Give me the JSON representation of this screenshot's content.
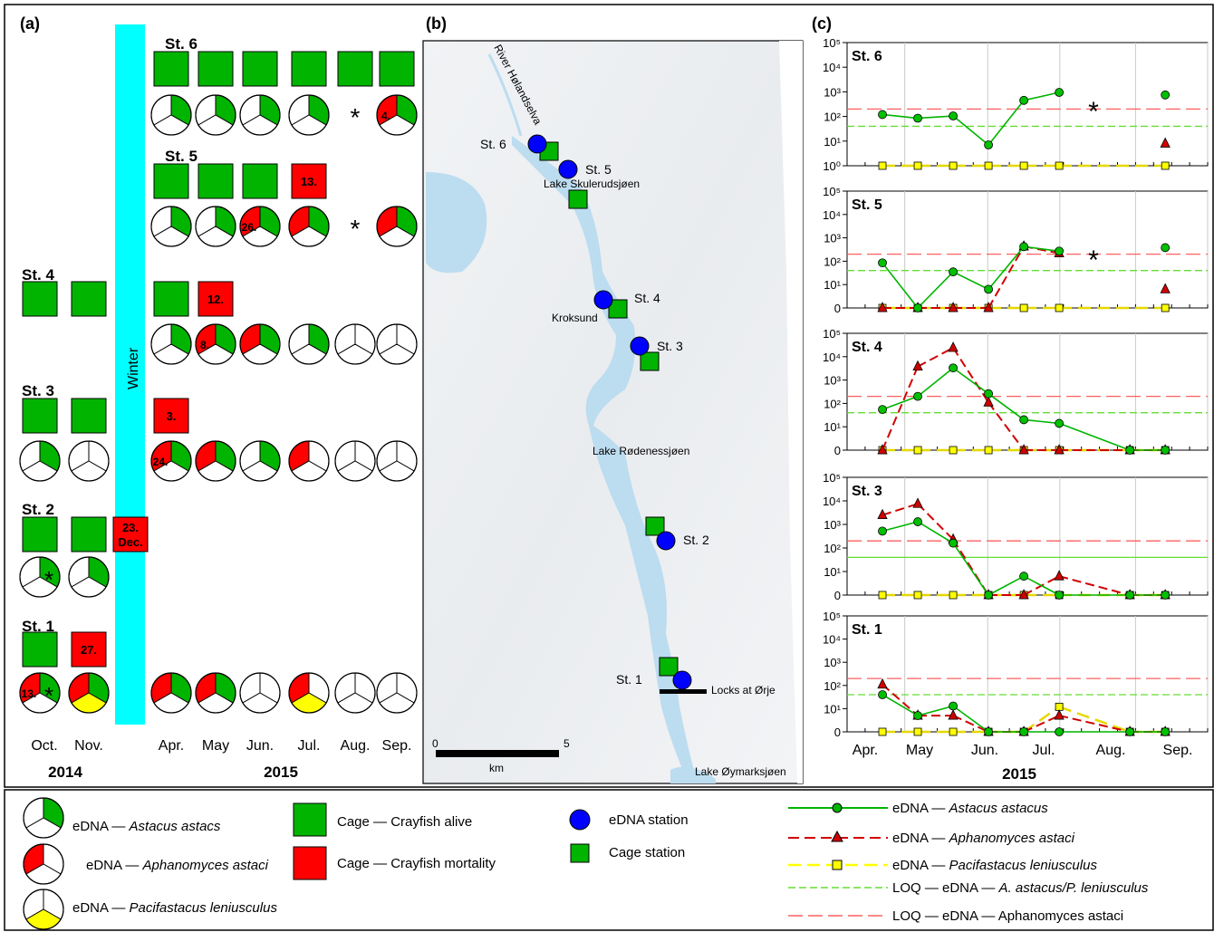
{
  "panel_a": {
    "label": "(a)",
    "winter_label": "Winter",
    "stations": [
      {
        "name": "St. 6",
        "cage": [
          null,
          null,
          "alive",
          "alive",
          "alive",
          "alive",
          "alive",
          "alive"
        ],
        "cage_text": [
          null,
          null,
          "",
          "",
          "",
          "",
          "",
          ""
        ],
        "pie": [
          null,
          null,
          [
            1,
            0,
            0
          ],
          [
            1,
            0,
            0
          ],
          [
            1,
            0,
            0
          ],
          [
            1,
            0,
            0
          ],
          "*",
          [
            1,
            1,
            0
          ]
        ],
        "pie_text": [
          null,
          null,
          "",
          "",
          "",
          "",
          "",
          "4."
        ],
        "pie_star": [
          null,
          null,
          false,
          false,
          false,
          false,
          true,
          false
        ]
      },
      {
        "name": "St. 5",
        "cage": [
          null,
          null,
          "alive",
          "alive",
          "alive",
          "dead",
          null,
          null
        ],
        "cage_text": [
          null,
          null,
          "",
          "",
          "",
          "13.",
          null,
          null
        ],
        "pie": [
          null,
          null,
          [
            1,
            0,
            0
          ],
          [
            1,
            0,
            0
          ],
          [
            1,
            1,
            0
          ],
          [
            1,
            1,
            0
          ],
          "*",
          [
            1,
            1,
            0
          ]
        ],
        "pie_text": [
          null,
          null,
          "",
          "",
          "26.",
          "",
          "",
          ""
        ]
      },
      {
        "name": "St. 4",
        "cage": [
          "alive",
          "alive",
          "alive",
          "dead",
          null,
          null,
          null,
          null
        ],
        "cage_text": [
          "",
          "",
          "",
          "12.",
          null,
          null,
          null,
          null
        ],
        "pie": [
          null,
          null,
          [
            1,
            0,
            0
          ],
          [
            1,
            1,
            0
          ],
          [
            1,
            1,
            0
          ],
          [
            1,
            0,
            0
          ],
          [
            0,
            0,
            0
          ],
          [
            0,
            0,
            0
          ]
        ],
        "pie_text": [
          null,
          null,
          "",
          "8.",
          "",
          "",
          "",
          ""
        ]
      },
      {
        "name": "St. 3",
        "cage": [
          "alive",
          "alive",
          "dead",
          null,
          null,
          null,
          null,
          null
        ],
        "cage_text": [
          "",
          "",
          "3.",
          null,
          null,
          null,
          null,
          null
        ],
        "pie": [
          [
            1,
            0,
            0
          ],
          [
            0,
            0,
            0
          ],
          [
            1,
            1,
            0
          ],
          [
            1,
            1,
            0
          ],
          [
            1,
            0,
            0
          ],
          [
            0,
            1,
            0
          ],
          [
            0,
            0,
            0
          ],
          [
            0,
            0,
            0
          ]
        ],
        "pie_text": [
          "",
          "",
          "24.",
          "",
          "",
          "",
          "",
          ""
        ]
      },
      {
        "name": "St. 2",
        "cage": [
          "alive",
          "alive",
          null,
          null,
          null,
          null,
          null,
          null
        ],
        "cage_text": [
          "",
          "",
          null,
          null,
          null,
          null,
          null,
          null
        ],
        "winter_cage_text": [
          "23.",
          "Dec."
        ],
        "pie": [
          [
            1,
            0,
            0
          ],
          [
            1,
            0,
            0
          ],
          null,
          null,
          null,
          null,
          null,
          null
        ],
        "pie_text": [
          "",
          "",
          null,
          null,
          null,
          null,
          null,
          null
        ]
      },
      {
        "name": "St. 1",
        "cage": [
          "alive",
          "dead",
          null,
          null,
          null,
          null,
          null,
          null
        ],
        "cage_text": [
          "",
          "27.",
          null,
          null,
          null,
          null,
          null,
          null
        ],
        "pie": [
          [
            1,
            1,
            0
          ],
          [
            1,
            1,
            1
          ],
          [
            1,
            1,
            0
          ],
          [
            1,
            1,
            0
          ],
          [
            0,
            0,
            0
          ],
          [
            0,
            1,
            1
          ],
          [
            0,
            0,
            0
          ],
          [
            0,
            0,
            0
          ]
        ],
        "pie_text": [
          "13.",
          "",
          "",
          "",
          "",
          "",
          "",
          ""
        ]
      }
    ],
    "months": [
      "Oct.",
      "Nov.",
      "Apr.",
      "May",
      "Jun.",
      "Jul.",
      "Aug.",
      "Sep."
    ],
    "years": [
      "2014",
      "2015"
    ]
  },
  "panel_b": {
    "label": "(b)",
    "river": "River Hølandselva",
    "lakes": [
      "Lake Skulerudsjøen",
      "Lake Rødenessjøen",
      "Lake Øymarksjøen"
    ],
    "places": [
      "Kroksund",
      "Locks at Ørje"
    ],
    "stations": [
      "St. 6",
      "St. 5",
      "St. 4",
      "St. 3",
      "St. 2",
      "St. 1"
    ],
    "scale": {
      "start": "0",
      "end": "5",
      "unit": "km"
    }
  },
  "chart_data": {
    "type": "line",
    "label": "(c)",
    "xlabel": "2015",
    "x_months": [
      "Apr.",
      "May",
      "Jun.",
      "Jul.",
      "Aug.",
      "Sep."
    ],
    "y_ticks": [
      "0",
      "10¹",
      "10²",
      "10³",
      "10⁴",
      "10⁵"
    ],
    "y_ticks_st6": [
      "10⁰",
      "10¹",
      "10²",
      "10³",
      "10⁴",
      "10⁵"
    ],
    "loq_astacus": 40,
    "loq_aphanomyces": 200,
    "panels": [
      {
        "name": "St. 6",
        "star": true,
        "astacus": [
          [
            1,
            120
          ],
          [
            2,
            85
          ],
          [
            3,
            105
          ],
          [
            4,
            7
          ],
          [
            5,
            450
          ],
          [
            6,
            950
          ],
          [
            9,
            750
          ]
        ],
        "aphanomyces": [
          [
            9,
            8
          ]
        ],
        "pacifastacus": [
          [
            1,
            1
          ],
          [
            2,
            1
          ],
          [
            3,
            1
          ],
          [
            4,
            1
          ],
          [
            5,
            1
          ],
          [
            6,
            1
          ],
          [
            9,
            1
          ]
        ]
      },
      {
        "name": "St. 5",
        "star": true,
        "astacus": [
          [
            1,
            85
          ],
          [
            2,
            0
          ],
          [
            3,
            35
          ],
          [
            4,
            8
          ],
          [
            5,
            420
          ],
          [
            6,
            270
          ],
          [
            9,
            380
          ]
        ],
        "aphanomyces": [
          [
            1,
            0
          ],
          [
            2,
            0
          ],
          [
            3,
            0
          ],
          [
            4,
            0
          ],
          [
            5,
            430
          ],
          [
            6,
            220
          ],
          [
            9,
            8
          ]
        ],
        "pacifastacus": [
          [
            1,
            0
          ],
          [
            2,
            0
          ],
          [
            3,
            0
          ],
          [
            4,
            0
          ],
          [
            5,
            0
          ],
          [
            6,
            0
          ],
          [
            9,
            0
          ]
        ]
      },
      {
        "name": "St. 4",
        "star": false,
        "astacus": [
          [
            1,
            55
          ],
          [
            2,
            200
          ],
          [
            3,
            3300
          ],
          [
            4,
            260
          ],
          [
            5,
            20
          ],
          [
            6,
            14
          ],
          [
            8,
            0
          ],
          [
            9,
            0
          ]
        ],
        "aphanomyces": [
          [
            1,
            0
          ],
          [
            2,
            3800
          ],
          [
            3,
            24000
          ],
          [
            4,
            110
          ],
          [
            5,
            0
          ],
          [
            6,
            0
          ],
          [
            8,
            0
          ],
          [
            9,
            0
          ]
        ],
        "pacifastacus": [
          [
            1,
            0
          ],
          [
            2,
            0
          ],
          [
            3,
            0
          ],
          [
            4,
            0
          ],
          [
            5,
            0
          ],
          [
            6,
            0
          ],
          [
            8,
            0
          ],
          [
            9,
            0
          ]
        ]
      },
      {
        "name": "St. 3",
        "star": false,
        "astacus": [
          [
            1,
            520
          ],
          [
            2,
            1300
          ],
          [
            3,
            160
          ],
          [
            4,
            0
          ],
          [
            5,
            8
          ],
          [
            6,
            0
          ],
          [
            8,
            0
          ],
          [
            9,
            0
          ]
        ],
        "aphanomyces": [
          [
            1,
            2500
          ],
          [
            2,
            7500
          ],
          [
            3,
            230
          ],
          [
            4,
            0
          ],
          [
            5,
            0
          ],
          [
            6,
            8
          ],
          [
            8,
            0
          ],
          [
            9,
            0
          ]
        ],
        "pacifastacus": [
          [
            1,
            0
          ],
          [
            2,
            0
          ],
          [
            3,
            0
          ],
          [
            4,
            0
          ],
          [
            5,
            0
          ],
          [
            6,
            0
          ],
          [
            8,
            0
          ],
          [
            9,
            0
          ]
        ]
      },
      {
        "name": "St. 1",
        "star": false,
        "astacus": [
          [
            1,
            40
          ],
          [
            2,
            7
          ],
          [
            3,
            13
          ],
          [
            4,
            0
          ],
          [
            5,
            0
          ],
          [
            6,
            0
          ],
          [
            8,
            0
          ],
          [
            9,
            0
          ]
        ],
        "aphanomyces": [
          [
            1,
            110
          ],
          [
            2,
            7
          ],
          [
            3,
            7
          ],
          [
            4,
            0
          ],
          [
            5,
            0
          ],
          [
            6,
            7
          ],
          [
            8,
            0
          ],
          [
            9,
            0
          ]
        ],
        "pacifastacus": [
          [
            1,
            0
          ],
          [
            2,
            0
          ],
          [
            3,
            0
          ],
          [
            4,
            0
          ],
          [
            5,
            0
          ],
          [
            6,
            12
          ],
          [
            8,
            0
          ],
          [
            9,
            0
          ]
        ]
      }
    ]
  },
  "legend": {
    "pie_astacus": [
      "eDNA — ",
      "Astacus astacs"
    ],
    "pie_aphanomyces": [
      "eDNA — ",
      "Aphanomyces astaci"
    ],
    "pie_pacifastacus": [
      "eDNA — ",
      "Pacifastacus leniusculus"
    ],
    "cage_alive": "Cage — Crayfish alive",
    "cage_dead": "Cage — Crayfish mortality",
    "edna_station": "eDNA station",
    "cage_station": "Cage station",
    "line_astacus": [
      "eDNA — ",
      "Astacus astacus"
    ],
    "line_aphanomyces": [
      "eDNA — ",
      "Aphanomyces astaci"
    ],
    "line_pacifastacus": [
      "eDNA — ",
      "Pacifastacus leniusculus"
    ],
    "loq_astacus": [
      "LOQ — eDNA — ",
      "A. astacus/P. leniusculus"
    ],
    "loq_aphanomyces": "LOQ — eDNA — Aphanomyces astaci"
  },
  "colors": {
    "green": "#00b400",
    "red": "#ff0000",
    "yellow": "#ffff00",
    "blue": "#0000ff",
    "cyan": "#00ffff",
    "water": "#bcdcf0"
  }
}
